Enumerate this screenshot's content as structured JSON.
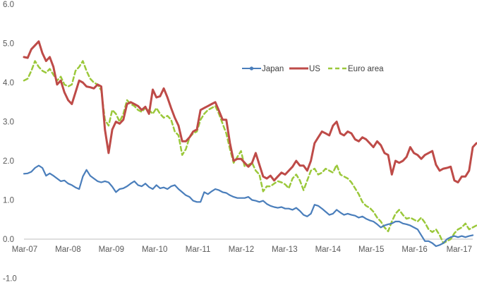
{
  "chart_data": {
    "type": "line",
    "title": "",
    "xlabel": "",
    "ylabel": "",
    "ylim": [
      -1.0,
      6.0
    ],
    "y_ticks": [
      "-1.0",
      "0.0",
      "1.0",
      "2.0",
      "3.0",
      "4.0",
      "5.0",
      "6.0"
    ],
    "x_tick_labels": [
      "Mar-07",
      "Mar-08",
      "Mar-09",
      "Mar-10",
      "Mar-11",
      "Mar-12",
      "Mar-13",
      "Mar-14",
      "Mar-15",
      "Mar-16",
      "Mar-17"
    ],
    "x_start": "Mar-07",
    "x_end": "Jun-17",
    "legend_position": "top-center",
    "grid": false,
    "series": [
      {
        "name": "Japan",
        "color": "#4a7ebb",
        "style": "solid",
        "values": [
          1.67,
          1.68,
          1.72,
          1.82,
          1.88,
          1.82,
          1.62,
          1.68,
          1.62,
          1.55,
          1.48,
          1.5,
          1.42,
          1.38,
          1.32,
          1.28,
          1.6,
          1.77,
          1.62,
          1.55,
          1.48,
          1.45,
          1.48,
          1.45,
          1.34,
          1.2,
          1.28,
          1.3,
          1.35,
          1.42,
          1.48,
          1.38,
          1.35,
          1.42,
          1.33,
          1.28,
          1.38,
          1.3,
          1.32,
          1.28,
          1.35,
          1.38,
          1.28,
          1.2,
          1.12,
          1.08,
          0.98,
          0.95,
          0.95,
          1.2,
          1.15,
          1.22,
          1.28,
          1.25,
          1.2,
          1.18,
          1.12,
          1.08,
          1.05,
          1.05,
          1.05,
          1.08,
          1.0,
          0.98,
          0.95,
          0.98,
          0.9,
          0.85,
          0.82,
          0.8,
          0.82,
          0.78,
          0.78,
          0.75,
          0.8,
          0.72,
          0.62,
          0.58,
          0.65,
          0.88,
          0.85,
          0.78,
          0.7,
          0.62,
          0.65,
          0.75,
          0.68,
          0.62,
          0.65,
          0.62,
          0.6,
          0.55,
          0.58,
          0.52,
          0.48,
          0.45,
          0.38,
          0.3,
          0.35,
          0.38,
          0.4,
          0.45,
          0.45,
          0.4,
          0.38,
          0.35,
          0.3,
          0.25,
          0.1,
          -0.05,
          -0.05,
          -0.1,
          -0.18,
          -0.15,
          -0.1,
          0.0,
          0.05,
          0.08,
          0.05,
          0.08,
          0.05,
          0.08,
          0.1
        ]
      },
      {
        "name": "US",
        "color": "#be4b48",
        "style": "solid",
        "values": [
          4.65,
          4.63,
          4.85,
          4.95,
          5.05,
          4.75,
          4.55,
          4.65,
          4.4,
          3.95,
          4.05,
          3.75,
          3.55,
          3.45,
          3.75,
          4.05,
          4.0,
          3.9,
          3.88,
          3.85,
          3.95,
          3.9,
          2.8,
          2.2,
          2.8,
          3.0,
          2.95,
          3.05,
          3.45,
          3.5,
          3.45,
          3.4,
          3.3,
          3.38,
          3.2,
          3.82,
          3.62,
          3.65,
          3.85,
          3.62,
          3.35,
          3.1,
          2.9,
          2.5,
          2.5,
          2.6,
          2.75,
          2.8,
          3.3,
          3.35,
          3.4,
          3.45,
          3.5,
          3.28,
          3.05,
          3.05,
          2.45,
          2.0,
          2.05,
          2.05,
          1.95,
          1.85,
          1.95,
          2.2,
          1.9,
          1.6,
          1.55,
          1.62,
          1.5,
          1.6,
          1.7,
          1.65,
          1.75,
          1.85,
          2.0,
          1.88,
          1.88,
          1.75,
          2.0,
          2.45,
          2.6,
          2.75,
          2.7,
          2.65,
          2.9,
          3.0,
          2.7,
          2.65,
          2.75,
          2.7,
          2.55,
          2.5,
          2.6,
          2.55,
          2.45,
          2.35,
          2.5,
          2.4,
          2.2,
          2.15,
          1.65,
          2.0,
          1.95,
          2.0,
          2.1,
          2.35,
          2.2,
          2.15,
          2.05,
          2.15,
          2.2,
          2.25,
          1.9,
          1.75,
          1.8,
          1.82,
          1.85,
          1.5,
          1.45,
          1.6,
          1.6,
          1.75,
          2.35,
          2.45,
          2.45,
          2.4,
          2.4,
          2.35,
          2.2,
          2.3
        ]
      },
      {
        "name": "Euro area",
        "color": "#9bc83b",
        "style": "dashed",
        "values": [
          4.05,
          4.1,
          4.3,
          4.55,
          4.4,
          4.3,
          4.25,
          4.35,
          4.2,
          4.05,
          4.15,
          3.95,
          3.9,
          3.95,
          4.3,
          4.4,
          4.55,
          4.3,
          4.1,
          4.0,
          3.95,
          3.8,
          3.05,
          2.9,
          3.3,
          3.2,
          3.0,
          3.2,
          3.55,
          3.45,
          3.4,
          3.3,
          3.25,
          3.35,
          3.3,
          3.2,
          3.35,
          3.2,
          3.1,
          3.15,
          3.05,
          2.75,
          2.65,
          2.15,
          2.3,
          2.6,
          2.7,
          2.75,
          3.05,
          3.2,
          3.3,
          3.35,
          3.4,
          3.2,
          2.95,
          2.7,
          2.3,
          1.95,
          2.1,
          2.25,
          1.85,
          1.9,
          1.95,
          1.75,
          1.65,
          1.22,
          1.35,
          1.35,
          1.42,
          1.48,
          1.45,
          1.4,
          1.3,
          1.55,
          1.65,
          1.5,
          1.25,
          1.5,
          1.75,
          1.8,
          1.65,
          1.7,
          1.8,
          1.75,
          1.7,
          1.9,
          1.65,
          1.6,
          1.55,
          1.45,
          1.3,
          1.15,
          0.95,
          0.85,
          0.8,
          0.7,
          0.55,
          0.45,
          0.3,
          0.2,
          0.45,
          0.65,
          0.75,
          0.62,
          0.52,
          0.55,
          0.5,
          0.45,
          0.55,
          0.42,
          0.25,
          0.18,
          0.25,
          0.1,
          -0.1,
          -0.05,
          0.0,
          0.15,
          0.25,
          0.3,
          0.4,
          0.25,
          0.3,
          0.35,
          0.4,
          0.45
        ]
      }
    ]
  }
}
